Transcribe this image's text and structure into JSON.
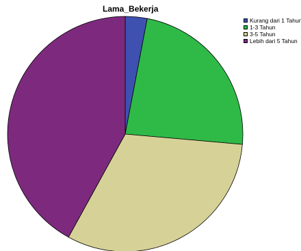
{
  "chart_data": {
    "type": "pie",
    "title": "Lama_Bekerja",
    "categories": [
      "Kurang dari 1 Tahun",
      "1-3 Tahun",
      "3-5 Tahun",
      "Lebih dari 5 Tahun"
    ],
    "values": [
      3.0,
      23.4,
      31.6,
      42.0
    ],
    "unit": "percent",
    "colors": [
      "#3f51b0",
      "#2fba48",
      "#d6d197",
      "#7d2a7e"
    ],
    "start_angle_deg": 0,
    "direction": "clockwise",
    "legend_position": "top-right"
  }
}
